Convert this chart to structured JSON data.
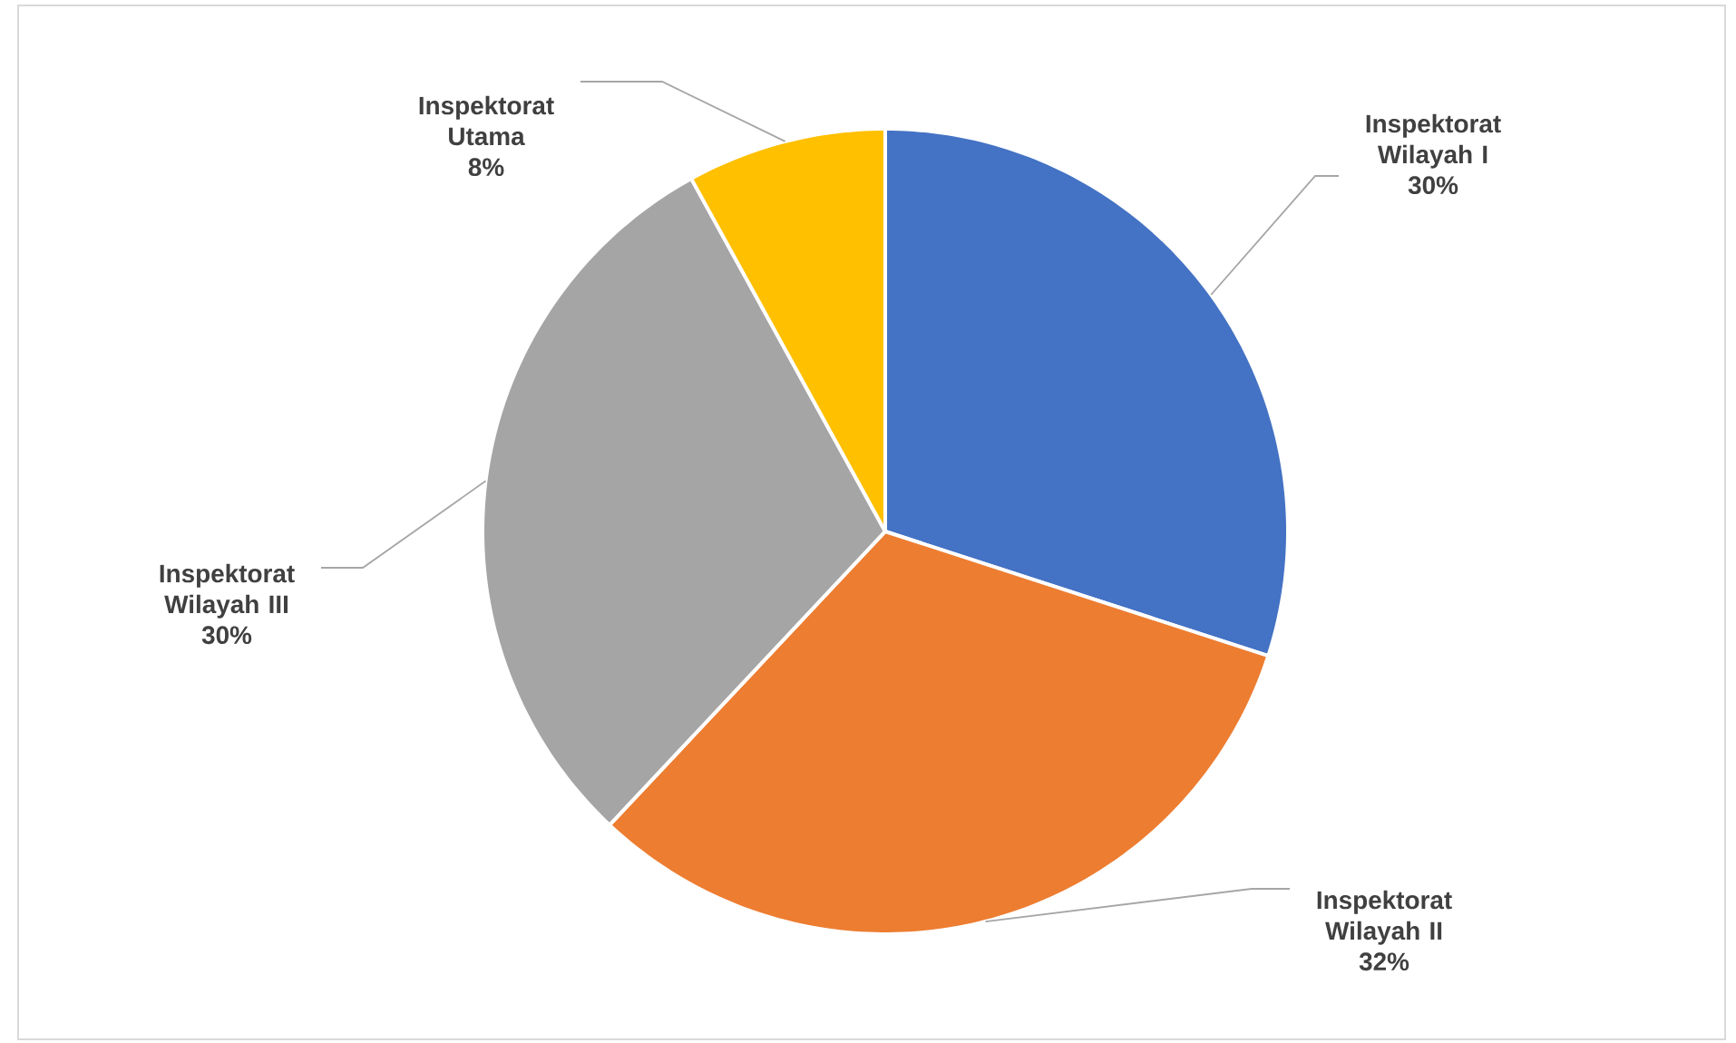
{
  "chart_data": {
    "type": "pie",
    "categories": [
      "Inspektorat Wilayah I",
      "Inspektorat Wilayah II",
      "Inspektorat Wilayah III",
      "Inspektorat Utama"
    ],
    "values": [
      30,
      32,
      30,
      8
    ],
    "colors": [
      "#4472c4",
      "#ed7d31",
      "#a5a5a5",
      "#ffc000"
    ],
    "value_labels": [
      "30%",
      "32%",
      "30%",
      "8%"
    ]
  }
}
